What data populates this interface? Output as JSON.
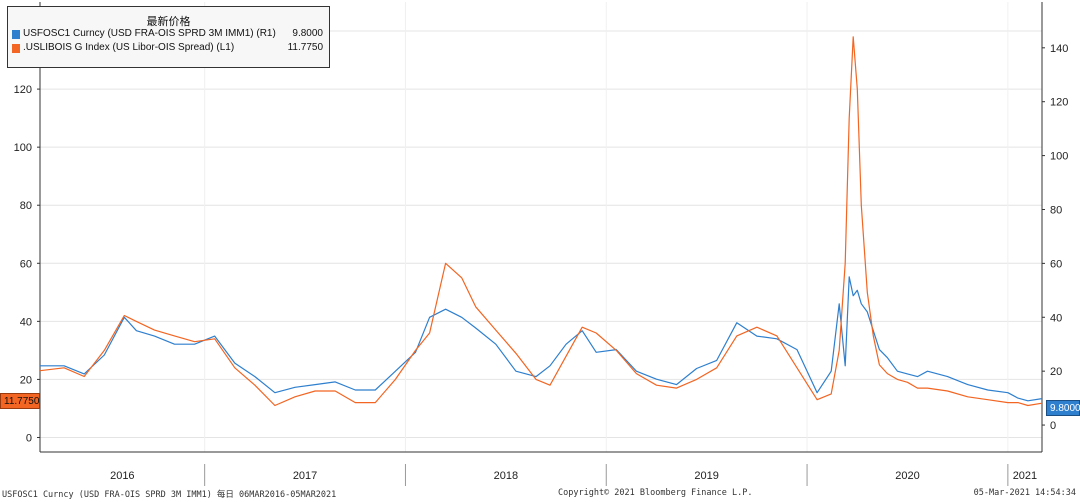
{
  "legend": {
    "title": "最新价格",
    "items": [
      {
        "label": "USFOSC1 Curncy (USD FRA-OIS SPRD 3M IMM1)  (R1)",
        "value": "9.8000",
        "color": "#2e7fce"
      },
      {
        "label": ".USLIBOIS G Index (US Libor-OIS Spread)  (L1)",
        "value": "11.7750",
        "color": "#f26522"
      }
    ]
  },
  "tags": {
    "left": "11.7750",
    "right": "9.8000"
  },
  "footer": {
    "left": "USFOSC1 Curncy (USD FRA-OIS SPRD 3M IMM1)  每日 06MAR2016-05MAR2021",
    "center": "Copyright© 2021 Bloomberg Finance L.P.",
    "right": "05-Mar-2021 14:54:34"
  },
  "chart_data": {
    "type": "line",
    "title": "最新价格",
    "x_range": [
      2016.18,
      2021.17
    ],
    "x_ticks": [
      "2016",
      "2017",
      "2018",
      "2019",
      "2020",
      "2021"
    ],
    "left_axis": {
      "ticks": [
        0,
        20,
        40,
        60,
        80,
        100,
        120,
        140
      ],
      "range": [
        -5,
        150
      ]
    },
    "right_axis": {
      "ticks": [
        0,
        20,
        40,
        60,
        80,
        100,
        120,
        140
      ],
      "range": [
        -10,
        157
      ]
    },
    "grid": true,
    "series": [
      {
        "name": "USFOSC1 Curncy (USD FRA-OIS SPRD 3M IMM1)",
        "axis": "right",
        "color": "#2e7fce",
        "x": [
          2016.18,
          2016.3,
          2016.4,
          2016.5,
          2016.6,
          2016.66,
          2016.75,
          2016.85,
          2016.95,
          2017.05,
          2017.15,
          2017.25,
          2017.35,
          2017.45,
          2017.55,
          2017.65,
          2017.75,
          2017.85,
          2017.95,
          2018.05,
          2018.12,
          2018.2,
          2018.28,
          2018.35,
          2018.45,
          2018.55,
          2018.65,
          2018.72,
          2018.8,
          2018.88,
          2018.95,
          2019.05,
          2019.15,
          2019.25,
          2019.35,
          2019.45,
          2019.55,
          2019.65,
          2019.75,
          2019.85,
          2019.95,
          2020.05,
          2020.12,
          2020.16,
          2020.19,
          2020.21,
          2020.23,
          2020.25,
          2020.27,
          2020.3,
          2020.33,
          2020.36,
          2020.4,
          2020.45,
          2020.5,
          2020.55,
          2020.6,
          2020.7,
          2020.8,
          2020.9,
          2021.0,
          2021.05,
          2021.1,
          2021.17
        ],
        "values": [
          22,
          22,
          19,
          26,
          40,
          35,
          33,
          30,
          30,
          33,
          23,
          18,
          12,
          14,
          15,
          16,
          13,
          13,
          20,
          27,
          40,
          43,
          40,
          36,
          30,
          20,
          18,
          22,
          30,
          35,
          27,
          28,
          20,
          17,
          15,
          21,
          24,
          38,
          33,
          32,
          28,
          12,
          20,
          45,
          22,
          55,
          48,
          50,
          45,
          42,
          35,
          28,
          25,
          20,
          19,
          18,
          20,
          18,
          15,
          13,
          12,
          10,
          9,
          9.8
        ]
      },
      {
        "name": ".USLIBOIS G Index (US Libor-OIS Spread)",
        "axis": "left",
        "color": "#f26522",
        "x": [
          2016.18,
          2016.3,
          2016.4,
          2016.5,
          2016.6,
          2016.66,
          2016.75,
          2016.85,
          2016.95,
          2017.05,
          2017.15,
          2017.25,
          2017.35,
          2017.45,
          2017.55,
          2017.65,
          2017.75,
          2017.85,
          2017.95,
          2018.05,
          2018.12,
          2018.2,
          2018.28,
          2018.35,
          2018.45,
          2018.55,
          2018.65,
          2018.72,
          2018.8,
          2018.88,
          2018.95,
          2019.05,
          2019.15,
          2019.25,
          2019.35,
          2019.45,
          2019.55,
          2019.65,
          2019.75,
          2019.85,
          2019.95,
          2020.05,
          2020.12,
          2020.16,
          2020.19,
          2020.21,
          2020.23,
          2020.25,
          2020.27,
          2020.3,
          2020.33,
          2020.36,
          2020.4,
          2020.45,
          2020.5,
          2020.55,
          2020.6,
          2020.7,
          2020.8,
          2020.9,
          2021.0,
          2021.05,
          2021.1,
          2021.17
        ],
        "values": [
          23,
          24,
          21,
          30,
          42,
          40,
          37,
          35,
          33,
          34,
          24,
          18,
          11,
          14,
          16,
          16,
          12,
          12,
          20,
          30,
          36,
          60,
          55,
          45,
          37,
          29,
          20,
          18,
          28,
          38,
          36,
          30,
          22,
          18,
          17,
          20,
          24,
          35,
          38,
          35,
          24,
          13,
          15,
          30,
          60,
          110,
          138,
          120,
          80,
          50,
          35,
          25,
          22,
          20,
          19,
          17,
          17,
          16,
          14,
          13,
          12,
          12,
          11,
          11.8
        ]
      }
    ]
  }
}
